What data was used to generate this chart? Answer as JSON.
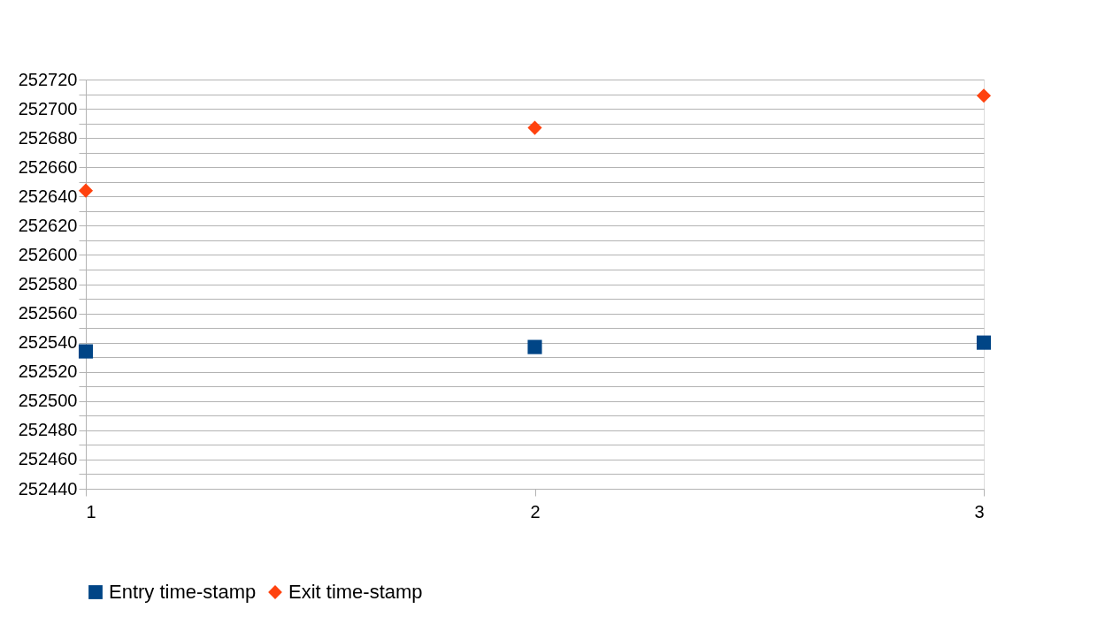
{
  "chart_data": {
    "type": "scatter",
    "x": [
      1,
      2,
      3
    ],
    "series": [
      {
        "name": "Entry time-stamp",
        "color": "#004586",
        "marker": "square",
        "values": [
          252534,
          252537,
          252540
        ]
      },
      {
        "name": "Exit time-stamp",
        "color": "#ff420e",
        "marker": "diamond",
        "values": [
          252644,
          252687,
          252709
        ]
      }
    ],
    "xlim": [
      1,
      3
    ],
    "xticks": [
      1,
      2,
      3
    ],
    "ylim": [
      252440,
      252720
    ],
    "yticks": [
      252440,
      {
        "value": 252450,
        "label": null
      },
      252460,
      {
        "value": 252470,
        "label": null
      },
      252480,
      {
        "value": 252490,
        "label": null
      },
      252500,
      {
        "value": 252510,
        "label": null
      },
      252520,
      {
        "value": 252530,
        "label": null
      },
      252540,
      {
        "value": 252550,
        "label": null
      },
      252560,
      {
        "value": 252570,
        "label": null
      },
      252580,
      {
        "value": 252590,
        "label": null
      },
      252600,
      {
        "value": 252610,
        "label": null
      },
      252620,
      {
        "value": 252630,
        "label": null
      },
      252640,
      {
        "value": 252650,
        "label": null
      },
      252660,
      {
        "value": 252670,
        "label": null
      },
      252680,
      {
        "value": 252690,
        "label": null
      },
      252700,
      {
        "value": 252710,
        "label": null
      },
      252720
    ],
    "grid": "y",
    "legend": "bottom"
  }
}
